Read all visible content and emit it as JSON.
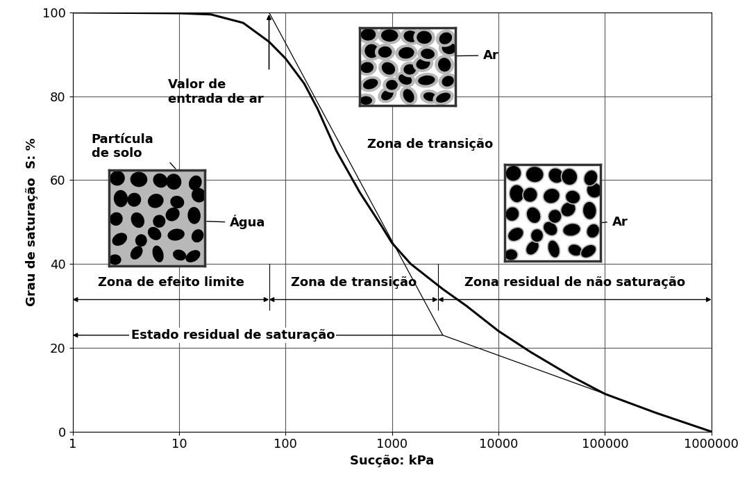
{
  "chart_data": {
    "type": "line",
    "xlabel": "Sucção: kPa",
    "ylabel": "Grau de saturação  S: %",
    "log": "x",
    "grid": true,
    "xlim": [
      1,
      1000000
    ],
    "xticks": [
      1,
      10,
      100,
      1000,
      10000,
      100000,
      1000000
    ],
    "ylim": [
      0,
      100
    ],
    "yticks": [
      0,
      20,
      40,
      60,
      80,
      100
    ],
    "series": [
      {
        "color": "#000000",
        "line_style": "solid",
        "x": [
          1,
          10,
          20,
          40,
          70,
          100,
          150,
          200,
          300,
          500,
          800,
          1000,
          1500,
          3000,
          5000,
          10000,
          20000,
          50000,
          100000,
          300000,
          1000000
        ],
        "values": [
          100,
          99.8,
          99.5,
          97.5,
          93,
          89,
          83,
          77,
          67,
          57,
          49,
          45,
          40,
          34,
          30,
          24,
          19,
          13,
          9,
          4.5,
          0
        ]
      },
      {
        "color": "#000000",
        "line_style": "solid",
        "x": [
          70,
          3000,
          100000
        ],
        "values": [
          100,
          23,
          9
        ]
      }
    ],
    "air_entry_value": 70,
    "residual_point": [
      3000,
      23
    ],
    "zones": [
      {
        "label": "Zona de efeito limite",
        "from": 1,
        "to": 70
      },
      {
        "label": "Zona de transição",
        "from": 70,
        "to": 2700
      },
      {
        "label": "Zona residual de não saturação",
        "from": 2700,
        "to": 1000000
      }
    ],
    "annotations": {
      "air_entry": "Valor de\nentrada de ar",
      "particle": "Partícula\nde solo",
      "water": "Água",
      "air": [
        "Ar",
        "Ar"
      ],
      "transition": "Zona de transição",
      "residual_state": "Estado residual de saturação"
    }
  }
}
